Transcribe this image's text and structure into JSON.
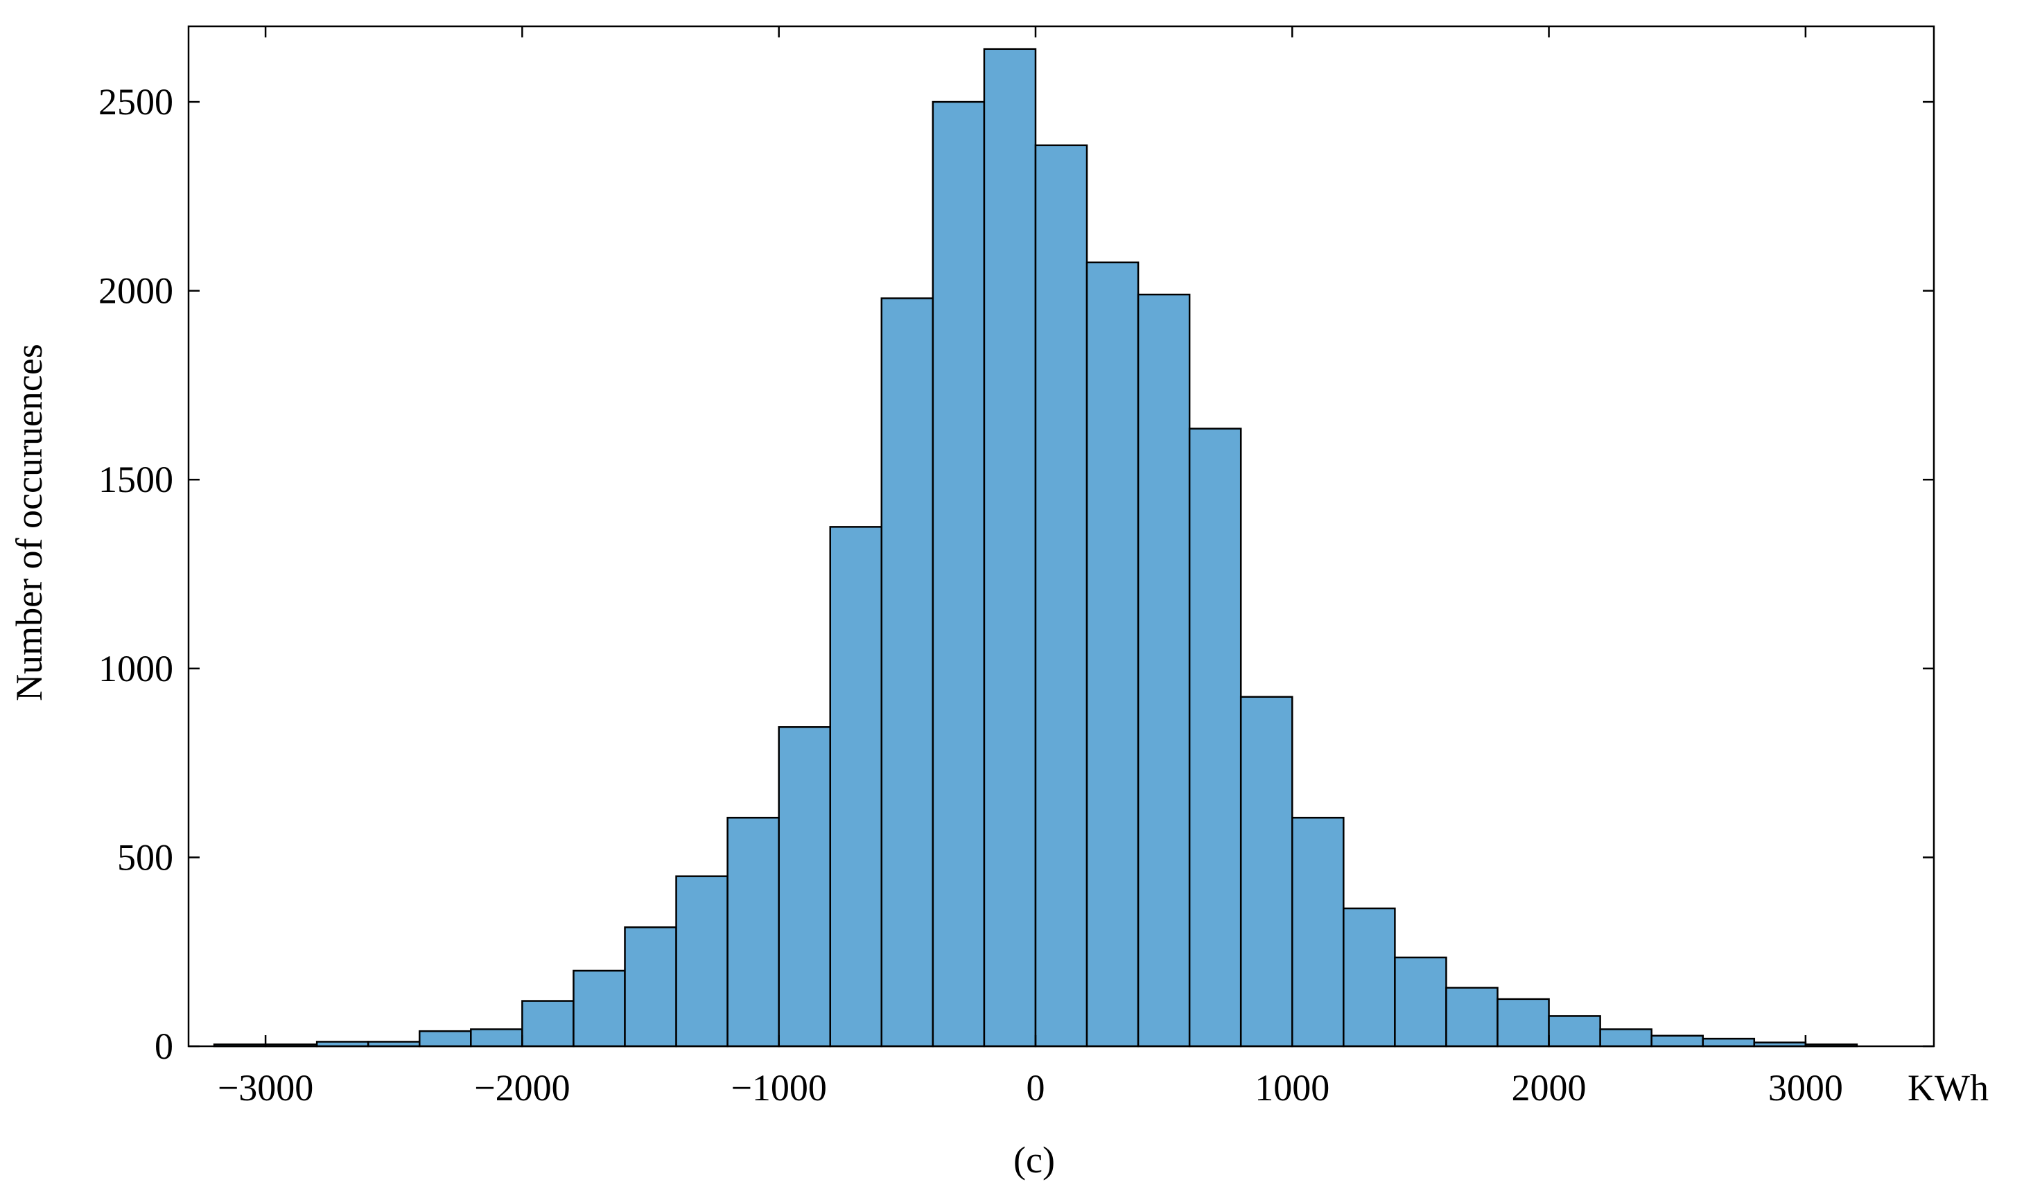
{
  "chart_data": {
    "type": "bar",
    "title": "",
    "xlabel": "KWh",
    "ylabel": "Number of occuruences",
    "caption": "(c)",
    "bin_width": 200,
    "bin_centers": [
      -3100,
      -2900,
      -2700,
      -2500,
      -2300,
      -2100,
      -1900,
      -1700,
      -1500,
      -1300,
      -1100,
      -900,
      -700,
      -500,
      -300,
      -100,
      100,
      300,
      500,
      700,
      900,
      1100,
      1300,
      1500,
      1700,
      1900,
      2100,
      2300,
      2500,
      2700,
      2900,
      3100
    ],
    "values": [
      5,
      5,
      12,
      12,
      40,
      45,
      120,
      200,
      315,
      450,
      605,
      845,
      1375,
      1980,
      2500,
      2640,
      2385,
      2075,
      1990,
      1635,
      925,
      605,
      365,
      235,
      155,
      125,
      80,
      45,
      28,
      20,
      10,
      5
    ],
    "xlim": [
      -3300,
      3500
    ],
    "ylim": [
      0,
      2700
    ],
    "xticks": [
      -3000,
      -2000,
      -1000,
      0,
      1000,
      2000,
      3000
    ],
    "xtick_labels": [
      "−3000",
      "−2000",
      "−1000",
      "0",
      "1000",
      "2000",
      "3000"
    ],
    "yticks": [
      0,
      500,
      1000,
      1500,
      2000,
      2500
    ],
    "ytick_labels": [
      "0",
      "500",
      "1000",
      "1500",
      "2000",
      "2500"
    ],
    "bar_color": "#64a9d6",
    "edge_color": "#000000",
    "grid": false
  }
}
